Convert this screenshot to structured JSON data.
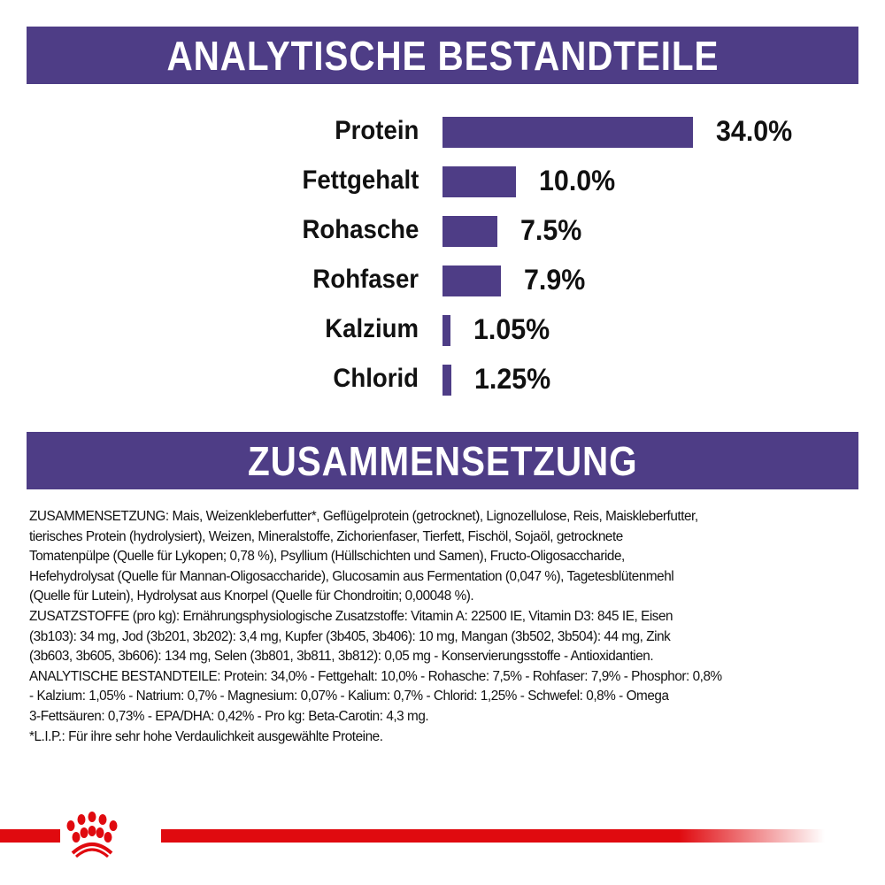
{
  "header1": "ANALYTISCHE BESTANDTEILE",
  "header2": "ZUSAMMENSETZUNG",
  "chart_data": {
    "type": "bar",
    "orientation": "horizontal",
    "categories": [
      "Protein",
      "Fettgehalt",
      "Rohasche",
      "Rohfaser",
      "Kalzium",
      "Chlorid"
    ],
    "values": [
      34.0,
      10.0,
      7.5,
      7.9,
      1.05,
      1.25
    ],
    "value_labels": [
      "34.0%",
      "10.0%",
      "7.5%",
      "7.9%",
      "1.05%",
      "1.25%"
    ],
    "unit": "%",
    "grid": false,
    "color": "#4e3d86"
  },
  "composition_lines": [
    "ZUSAMMENSETZUNG: Mais, Weizenkleberfutter*, Geflügelprotein (getrocknet), Lignozellulose, Reis, Maiskleberfutter,",
    "tierisches Protein (hydrolysiert), Weizen, Mineralstoffe, Zichorienfaser, Tierfett, Fischöl, Sojaöl, getrocknete",
    "Tomatenpülpe (Quelle für Lykopen; 0,78 %), Psyllium (Hüllschichten und Samen), Fructo-Oligosaccharide,",
    "Hefehydrolysat (Quelle für Mannan-Oligosaccharide), Glucosamin aus Fermentation (0,047 %), Tagetesblütenmehl",
    "(Quelle für Lutein), Hydrolysat aus Knorpel (Quelle für Chondroitin; 0,00048 %).",
    "ZUSATZSTOFFE (pro kg): Ernährungsphysiologische Zusatzstoffe: Vitamin A: 22500 IE, Vitamin D3: 845 IE, Eisen",
    "(3b103): 34 mg, Jod (3b201, 3b202): 3,4 mg, Kupfer (3b405, 3b406): 10 mg, Mangan (3b502, 3b504): 44 mg, Zink",
    "(3b603, 3b605, 3b606): 134 mg, Selen (3b801, 3b811, 3b812): 0,05 mg - Konservierungsstoffe - Antioxidantien.",
    "ANALYTISCHE BESTANDTEILE: Protein: 34,0% - Fettgehalt: 10,0% - Rohasche: 7,5% - Rohfaser: 7,9% - Phosphor: 0,8%",
    "- Kalzium: 1,05% - Natrium: 0,7% - Magnesium: 0,07% - Kalium: 0,7% - Chlorid: 1,25% - Schwefel: 0,8% - Omega",
    "3-Fettsäuren: 0,73% - EPA/DHA: 0,42% - Pro kg: Beta-Carotin: 4,3 mg.",
    "*L.I.P.: Für ihre sehr hohe Verdaulichkeit ausgewählte Proteine."
  ],
  "brand_color": "#e00a0f",
  "logo_icon": "crown-icon"
}
